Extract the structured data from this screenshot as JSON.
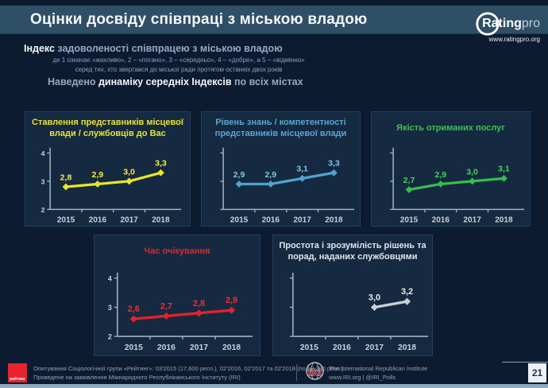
{
  "header": {
    "title": "Оцінки досвіду співпраці з міською владою"
  },
  "logo": {
    "brand_bold": "Rating",
    "brand_light": "pro",
    "url": "www.ratingpro.org"
  },
  "intro": {
    "index_word": "Індекс",
    "index_rest": " задоволеності співпрацею з міською владою",
    "scale_note_1": "де 1 означає «жахливо», 2 – «погано», 3 – «середньо», 4 – «добре», а 5 – «відмінно»",
    "scale_note_2": "серед тих, хто звертався до міської ради протягом останніх двох років",
    "dynamics_prefix": "Наведено ",
    "dynamics_bold": "динаміку середніх Індексів",
    "dynamics_suffix": " по всіх містах"
  },
  "colors": {
    "background": "#0d1b30",
    "titlebar": "#2e4f66",
    "panel": "#152a40",
    "axis": "#9fb2c2",
    "tick_labels": "#c7d1dc",
    "bottom_strip": "#8fa9bf"
  },
  "chart_data": [
    {
      "type": "line",
      "title": "Ставлення представників місцевої влади / службовців до Вас",
      "categories": [
        "2015",
        "2016",
        "2017",
        "2018"
      ],
      "values": [
        2.8,
        2.9,
        3.0,
        3.3
      ],
      "labels": [
        "2,8",
        "2,9",
        "3,0",
        "3,3"
      ],
      "xlabel": "",
      "ylabel": "",
      "ylim": [
        2,
        4
      ],
      "yticks": [
        2,
        3,
        4
      ],
      "show_y_labels": true,
      "color": "#ece723",
      "label_color": "#f2ee3c",
      "title_color": "#e8e332"
    },
    {
      "type": "line",
      "title": "Рівень знань / компетентності представників місцевої влади",
      "categories": [
        "2015",
        "2016",
        "2017",
        "2018"
      ],
      "values": [
        2.9,
        2.9,
        3.1,
        3.3
      ],
      "labels": [
        "2,9",
        "2,9",
        "3,1",
        "3,3"
      ],
      "xlabel": "",
      "ylabel": "",
      "ylim": [
        2,
        4
      ],
      "yticks": [
        2,
        3,
        4
      ],
      "show_y_labels": false,
      "color": "#4ea3d3",
      "label_color": "#7fc4e8",
      "title_color": "#56a7d4"
    },
    {
      "type": "line",
      "title": "Якість отриманих послуг",
      "categories": [
        "2015",
        "2016",
        "2017",
        "2018"
      ],
      "values": [
        2.7,
        2.9,
        3.0,
        3.1
      ],
      "labels": [
        "2,7",
        "2,9",
        "3,0",
        "3,1"
      ],
      "xlabel": "",
      "ylabel": "",
      "ylim": [
        2,
        4
      ],
      "yticks": [
        2,
        3,
        4
      ],
      "show_y_labels": false,
      "color": "#35bd4d",
      "label_color": "#49cf5e",
      "title_color": "#3bc152"
    },
    {
      "type": "line",
      "title": "Час очікування",
      "categories": [
        "2015",
        "2016",
        "2017",
        "2018"
      ],
      "values": [
        2.6,
        2.7,
        2.8,
        2.9
      ],
      "labels": [
        "2,6",
        "2,7",
        "2,8",
        "2,9"
      ],
      "xlabel": "",
      "ylabel": "",
      "ylim": [
        2,
        4
      ],
      "yticks": [
        2,
        3,
        4
      ],
      "show_y_labels": true,
      "color": "#e2232d",
      "label_color": "#ee2f38",
      "title_color": "#e2242e"
    },
    {
      "type": "line",
      "title": "Простота і зрозумілість рішень та порад, наданих службовцями",
      "categories": [
        "2015",
        "2016",
        "2017",
        "2018"
      ],
      "values": [
        null,
        null,
        3.0,
        3.2
      ],
      "labels": [
        "",
        "",
        "3,0",
        "3,2"
      ],
      "xlabel": "",
      "ylabel": "",
      "ylim": [
        2,
        4
      ],
      "yticks": [
        2,
        3,
        4
      ],
      "show_y_labels": false,
      "color": "#c9cfd5",
      "label_color": "#e8ebee",
      "title_color": "#dfe5ea"
    }
  ],
  "footer": {
    "rating_logo_text": "рейтинг",
    "source_line1": "Опитування Соціологічної групи «Рейтинг»: 03'2015 (17,600 респ.), 02'2016, 02'2017 та 02'2018 (по 19,200 респ.).",
    "source_line2": "Проведене на замовлення Міжнародного Республіканського Інституту (IRI)",
    "iri_logo_text": "IRI",
    "iri_name": "The International Republican Institute",
    "iri_contacts": "www.IRI.org | @IRI_Polls",
    "page_number": "21"
  }
}
